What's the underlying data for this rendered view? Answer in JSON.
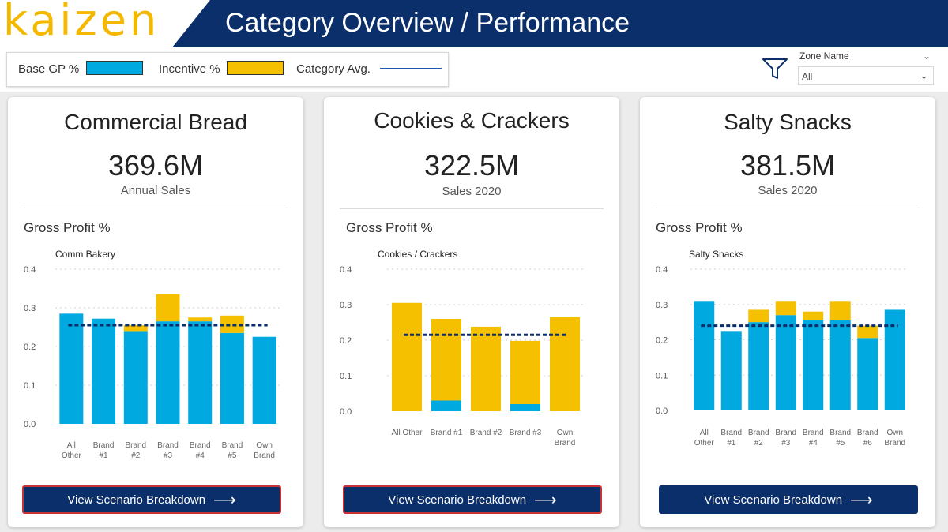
{
  "header": {
    "logo": "kaizen",
    "title": "Category Overview / Performance"
  },
  "legend": {
    "base_label": "Base GP %",
    "incentive_label": "Incentive %",
    "avg_label": "Category Avg.",
    "base_color": "#00a9e0",
    "incentive_color": "#f5c000",
    "avg_color": "#1a5aa8"
  },
  "filter": {
    "label": "Zone Name",
    "value": "All"
  },
  "cards": [
    {
      "title": "Commercial Bread",
      "value": "369.6M",
      "sub": "Annual Sales",
      "gp_label": "Gross Profit %",
      "button": "View Scenario Breakdown",
      "button_arrow": "⟶"
    },
    {
      "title": "Cookies & Crackers",
      "value": "322.5M",
      "sub": "Sales 2020",
      "gp_label": "Gross Profit %",
      "button": "View Scenario Breakdown",
      "button_arrow": "⟶"
    },
    {
      "title": "Salty Snacks",
      "value": "381.5M",
      "sub": "Sales 2020",
      "gp_label": "Gross Profit %",
      "button": "View Scenario Breakdown",
      "button_arrow": "⟶"
    }
  ],
  "chart_data": [
    {
      "type": "bar",
      "stacked": true,
      "title": "Comm Bakery",
      "ylim": [
        0,
        0.4
      ],
      "yticks": [
        "0.0",
        "0.1",
        "0.2",
        "0.3",
        "0.4"
      ],
      "categories": [
        [
          "All",
          "Other"
        ],
        [
          "Brand",
          "#1"
        ],
        [
          "Brand",
          "#2"
        ],
        [
          "Brand",
          "#3"
        ],
        [
          "Brand",
          "#4"
        ],
        [
          "Brand",
          "#5"
        ],
        [
          "Own",
          "Brand"
        ]
      ],
      "series": [
        {
          "name": "Base GP %",
          "values": [
            0.285,
            0.272,
            0.24,
            0.265,
            0.265,
            0.235,
            0.225
          ]
        },
        {
          "name": "Incentive %",
          "values": [
            0,
            0,
            0.015,
            0.07,
            0.01,
            0.045,
            0
          ]
        }
      ],
      "average": 0.255,
      "grid": true
    },
    {
      "type": "bar",
      "stacked": true,
      "title": "Cookies / Crackers",
      "ylim": [
        0,
        0.4
      ],
      "yticks": [
        "0.0",
        "0.1",
        "0.2",
        "0.3",
        "0.4"
      ],
      "categories": [
        [
          "All Other"
        ],
        [
          "Brand #1"
        ],
        [
          "Brand #2"
        ],
        [
          "Brand #3"
        ],
        [
          "Own",
          "Brand"
        ]
      ],
      "series": [
        {
          "name": "Base GP %",
          "values": [
            0,
            0.03,
            0,
            0.02,
            0
          ]
        },
        {
          "name": "Incentive %",
          "values": [
            0.305,
            0.23,
            0.238,
            0.178,
            0.265
          ]
        }
      ],
      "average": 0.215,
      "grid": true
    },
    {
      "type": "bar",
      "stacked": true,
      "title": "Salty Snacks",
      "ylim": [
        0,
        0.4
      ],
      "yticks": [
        "0.0",
        "0.1",
        "0.2",
        "0.3",
        "0.4"
      ],
      "categories": [
        [
          "All",
          "Other"
        ],
        [
          "Brand",
          "#1"
        ],
        [
          "Brand",
          "#2"
        ],
        [
          "Brand",
          "#3"
        ],
        [
          "Brand",
          "#4"
        ],
        [
          "Brand",
          "#5"
        ],
        [
          "Brand",
          "#6"
        ],
        [
          "Own",
          "Brand"
        ]
      ],
      "series": [
        {
          "name": "Base GP %",
          "values": [
            0.31,
            0.225,
            0.25,
            0.27,
            0.255,
            0.255,
            0.205,
            0.285
          ]
        },
        {
          "name": "Incentive %",
          "values": [
            0,
            0,
            0.035,
            0.04,
            0.025,
            0.055,
            0.035,
            0
          ]
        }
      ],
      "average": 0.24,
      "grid": true
    }
  ]
}
